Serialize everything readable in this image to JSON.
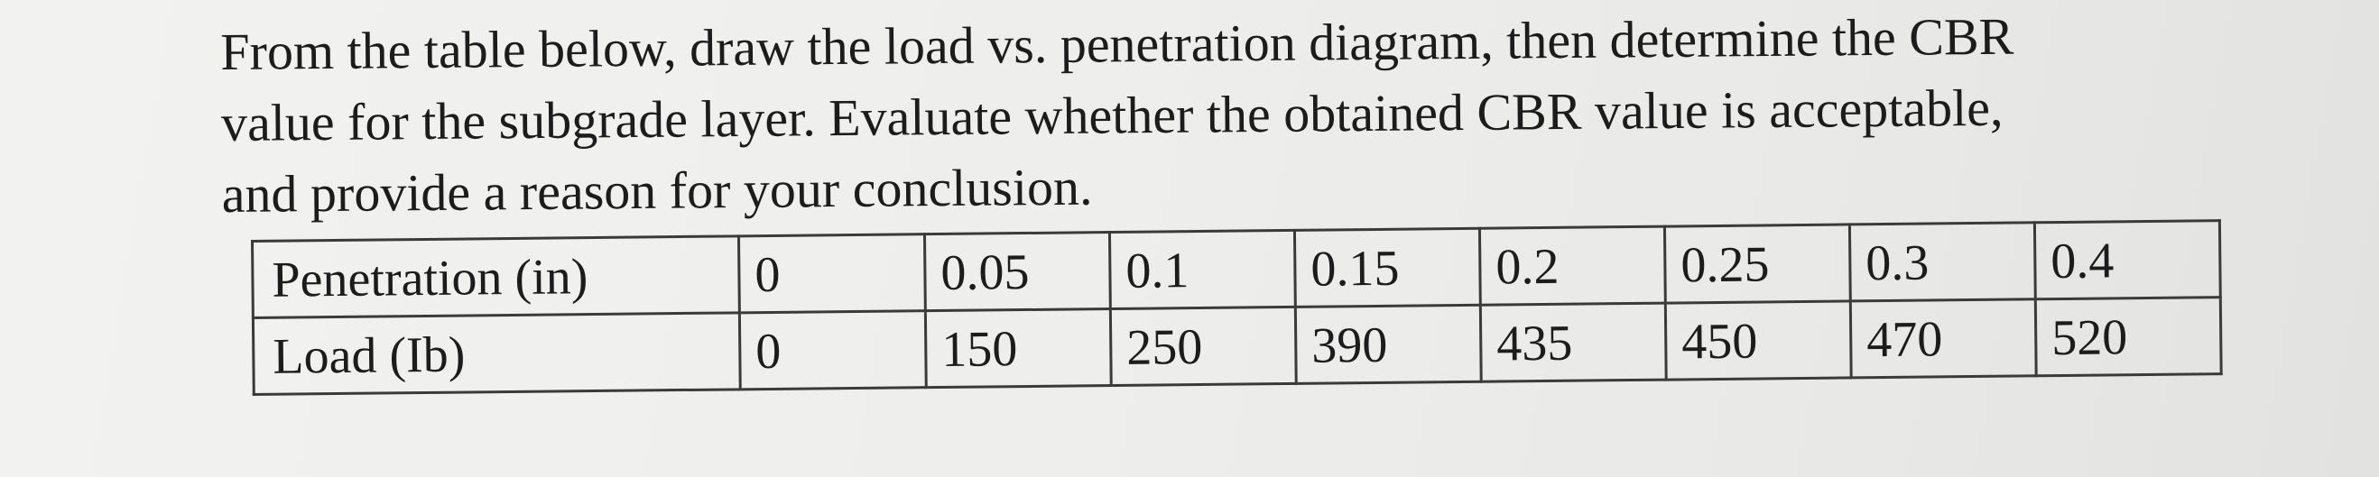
{
  "question": {
    "lines": [
      "From the table below, draw the load vs. penetration diagram, then determine the CBR",
      "value for the subgrade layer. Evaluate whether the obtained CBR value is acceptable,",
      "and provide a reason for your conclusion."
    ]
  },
  "table": {
    "rows": [
      {
        "label": "Penetration (in)",
        "values": [
          "0",
          "0.05",
          "0.1",
          "0.15",
          "0.2",
          "0.25",
          "0.3",
          "0.4"
        ]
      },
      {
        "label": "Load (Ib)",
        "values": [
          "0",
          "150",
          "250",
          "390",
          "435",
          "450",
          "470",
          "520"
        ]
      }
    ]
  }
}
